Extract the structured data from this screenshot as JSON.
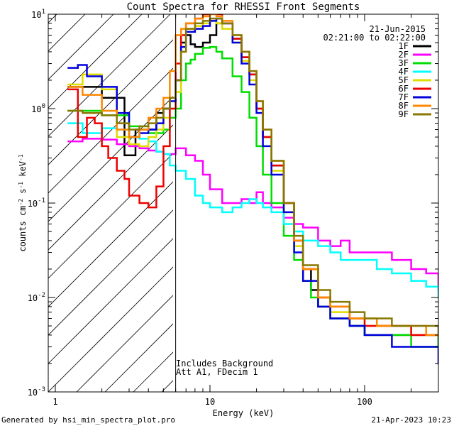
{
  "colors": {
    "background": "#ffffff",
    "axis": "#000000"
  },
  "chart_data": {
    "type": "line",
    "scale": "log-log",
    "title": "Count Spectra for RHESSI Front Segments",
    "xlabel": "Energy (keV)",
    "ylabel_parts": {
      "a": "counts cm",
      "b": "-2",
      "c": " s",
      "d": "-1",
      "e": " keV",
      "f": "-1"
    },
    "xlim": [
      0.9,
      300
    ],
    "ylim": [
      0.001,
      10
    ],
    "x_ticks": [
      {
        "v": 1,
        "label": "1"
      },
      {
        "v": 10,
        "label": "10"
      },
      {
        "v": 100,
        "label": "100"
      }
    ],
    "y_ticks": [
      {
        "v": 0.001,
        "base": "10",
        "exp": "-3"
      },
      {
        "v": 0.01,
        "base": "10",
        "exp": "-2"
      },
      {
        "v": 0.1,
        "base": "10",
        "exp": "-1"
      },
      {
        "v": 1,
        "base": "10",
        "exp": "0"
      },
      {
        "v": 10,
        "base": "10",
        "exp": "1"
      }
    ],
    "date": "21-Jun-2015",
    "time_range": "02:21:00 to 02:22:00",
    "annotation_lines": [
      "Includes Background",
      "Att A1, FDecim 1"
    ],
    "attenuator_energy": 6,
    "series": [
      {
        "name": "1F",
        "color": "#000000",
        "x": [
          1.2,
          2,
          2.8,
          3.3,
          4,
          4.5,
          5,
          5.5,
          6,
          6.5,
          7,
          7.5,
          8,
          9,
          10,
          11,
          12,
          14,
          16,
          18,
          20,
          22,
          25,
          30,
          35,
          40,
          45,
          50,
          60,
          80,
          100,
          120,
          150,
          200,
          250,
          300
        ],
        "y": [
          1.7,
          1.3,
          0.32,
          0.6,
          0.6,
          0.9,
          1,
          1.3,
          2,
          5,
          6,
          4.8,
          4.5,
          5,
          6,
          8,
          8,
          5.5,
          3.5,
          2.3,
          1,
          0.5,
          0.25,
          0.1,
          0.04,
          0.02,
          0.012,
          0.008,
          0.006,
          0.005,
          0.004,
          0.004,
          0.004,
          0.004,
          0.004,
          0.003
        ]
      },
      {
        "name": "2F",
        "color": "#ff00ff",
        "x": [
          1.2,
          1.5,
          2,
          2.5,
          3,
          3.5,
          4,
          4.5,
          5,
          6,
          7,
          8,
          9,
          10,
          12,
          14,
          16,
          18,
          20,
          22,
          25,
          30,
          35,
          40,
          50,
          60,
          70,
          80,
          100,
          120,
          150,
          200,
          250,
          300
        ],
        "y": [
          0.45,
          0.48,
          0.47,
          0.42,
          0.4,
          0.38,
          0.36,
          0.35,
          0.33,
          0.38,
          0.32,
          0.28,
          0.2,
          0.14,
          0.1,
          0.1,
          0.11,
          0.1,
          0.13,
          0.1,
          0.09,
          0.07,
          0.06,
          0.055,
          0.04,
          0.035,
          0.04,
          0.03,
          0.03,
          0.03,
          0.025,
          0.02,
          0.018,
          0.012
        ]
      },
      {
        "name": "3F",
        "color": "#00dd00",
        "x": [
          1.2,
          2,
          3,
          4,
          5,
          5.5,
          6,
          6.5,
          7,
          7.5,
          8,
          9,
          10,
          11,
          12,
          14,
          16,
          18,
          20,
          22,
          25,
          30,
          35,
          40,
          45,
          50,
          60,
          80,
          100,
          120,
          150,
          200,
          250,
          300
        ],
        "y": [
          0.95,
          0.85,
          0.65,
          0.55,
          0.6,
          0.8,
          1,
          2,
          3,
          3.3,
          3.8,
          4.4,
          4.5,
          4,
          3.4,
          2.2,
          1.5,
          0.8,
          0.4,
          0.2,
          0.1,
          0.045,
          0.025,
          0.015,
          0.01,
          0.008,
          0.006,
          0.005,
          0.004,
          0.004,
          0.004,
          0.003,
          0.003,
          0.004
        ]
      },
      {
        "name": "4F",
        "color": "#00ffff",
        "x": [
          1.2,
          1.5,
          2,
          2.5,
          3,
          3.5,
          4,
          4.5,
          5,
          5.5,
          6,
          7,
          8,
          9,
          10,
          12,
          14,
          16,
          18,
          20,
          22,
          25,
          30,
          35,
          40,
          50,
          60,
          70,
          80,
          100,
          120,
          150,
          200,
          250,
          300
        ],
        "y": [
          0.7,
          0.55,
          0.62,
          0.6,
          0.5,
          0.48,
          0.45,
          0.35,
          0.33,
          0.25,
          0.22,
          0.18,
          0.12,
          0.1,
          0.09,
          0.08,
          0.09,
          0.1,
          0.11,
          0.1,
          0.09,
          0.08,
          0.06,
          0.05,
          0.04,
          0.035,
          0.03,
          0.025,
          0.025,
          0.025,
          0.02,
          0.018,
          0.015,
          0.013,
          0.01
        ]
      },
      {
        "name": "5F",
        "color": "#dddd00",
        "x": [
          1.2,
          1.5,
          2,
          2.5,
          3,
          3.5,
          4,
          4.5,
          5,
          5.5,
          6,
          6.5,
          7,
          8,
          9,
          10,
          11,
          12,
          14,
          16,
          18,
          20,
          22,
          25,
          30,
          35,
          40,
          50,
          60,
          80,
          100,
          120,
          150,
          200,
          250,
          300
        ],
        "y": [
          1.8,
          2.3,
          1.6,
          0.5,
          0.42,
          0.4,
          0.5,
          0.6,
          0.8,
          1,
          1.5,
          4,
          7,
          7.5,
          8,
          8.5,
          8,
          7,
          5,
          3.2,
          2,
          1,
          0.5,
          0.22,
          0.08,
          0.035,
          0.02,
          0.01,
          0.007,
          0.006,
          0.005,
          0.005,
          0.005,
          0.004,
          0.004,
          0.004
        ]
      },
      {
        "name": "6F",
        "color": "#ee0000",
        "x": [
          1.2,
          1.4,
          1.6,
          1.8,
          2,
          2.2,
          2.5,
          2.8,
          3,
          3.5,
          4,
          4.5,
          5,
          5.5,
          6,
          6.5,
          7,
          8,
          9,
          10,
          11,
          12,
          14,
          16,
          18,
          20,
          22,
          25,
          30,
          35,
          40,
          50,
          60,
          80,
          100,
          120,
          150,
          200,
          250,
          300
        ],
        "y": [
          1.6,
          0.5,
          0.8,
          0.7,
          0.4,
          0.3,
          0.22,
          0.18,
          0.12,
          0.1,
          0.09,
          0.15,
          0.4,
          1,
          3,
          6,
          8,
          9,
          10,
          11,
          10,
          8,
          5.5,
          3.5,
          2.3,
          1,
          0.5,
          0.25,
          0.1,
          0.04,
          0.02,
          0.01,
          0.008,
          0.006,
          0.005,
          0.005,
          0.005,
          0.004,
          0.004,
          0.004
        ]
      },
      {
        "name": "7F",
        "color": "#0000dd",
        "x": [
          1.2,
          1.4,
          1.6,
          2,
          2.5,
          3,
          3.5,
          4,
          4.5,
          5,
          5.5,
          6,
          6.5,
          7,
          8,
          9,
          10,
          11,
          12,
          14,
          16,
          18,
          20,
          22,
          25,
          30,
          35,
          40,
          50,
          60,
          80,
          100,
          120,
          150,
          200,
          250,
          300
        ],
        "y": [
          2.7,
          2.9,
          2.2,
          1.7,
          0.9,
          0.5,
          0.55,
          0.6,
          0.7,
          1,
          1.2,
          2,
          4.5,
          6.5,
          7,
          7.5,
          8.5,
          9,
          8,
          5,
          3,
          1.8,
          0.9,
          0.4,
          0.2,
          0.08,
          0.03,
          0.015,
          0.008,
          0.006,
          0.005,
          0.004,
          0.004,
          0.003,
          0.003,
          0.003,
          0.002
        ]
      },
      {
        "name": "8F",
        "color": "#ff8800",
        "x": [
          1.2,
          1.5,
          2,
          2.5,
          3,
          3.5,
          4,
          4.5,
          5,
          5.5,
          6,
          6.5,
          7,
          8,
          9,
          10,
          11,
          12,
          14,
          16,
          18,
          20,
          22,
          25,
          30,
          35,
          40,
          50,
          60,
          80,
          100,
          120,
          150,
          200,
          250,
          300
        ],
        "y": [
          1.7,
          1.4,
          0.95,
          0.6,
          0.5,
          0.6,
          0.8,
          1,
          1.3,
          2.5,
          6,
          7,
          8,
          9,
          9.5,
          10,
          9.5,
          8.5,
          6,
          4,
          2.5,
          1.2,
          0.6,
          0.28,
          0.1,
          0.04,
          0.02,
          0.01,
          0.008,
          0.006,
          0.006,
          0.005,
          0.005,
          0.005,
          0.004,
          0.004
        ]
      },
      {
        "name": "9F",
        "color": "#887700",
        "x": [
          1.2,
          1.5,
          2,
          2.5,
          3,
          3.5,
          4,
          4.5,
          5,
          5.5,
          6,
          6.5,
          7,
          8,
          9,
          10,
          11,
          12,
          14,
          16,
          18,
          20,
          22,
          25,
          30,
          35,
          40,
          50,
          60,
          80,
          100,
          120,
          150,
          200,
          250,
          300
        ],
        "y": [
          0.95,
          0.9,
          0.85,
          0.7,
          0.6,
          0.65,
          0.7,
          0.8,
          1,
          1.3,
          2,
          4,
          7,
          8,
          8.5,
          9,
          9,
          8,
          6,
          4,
          2.5,
          1.2,
          0.6,
          0.28,
          0.1,
          0.045,
          0.022,
          0.012,
          0.009,
          0.007,
          0.006,
          0.006,
          0.005,
          0.005,
          0.005,
          0.004
        ]
      }
    ]
  },
  "footer": {
    "generated_by": "Generated by hsi_min_spectra_plot.pro",
    "timestamp": "21-Apr-2023 10:23"
  }
}
